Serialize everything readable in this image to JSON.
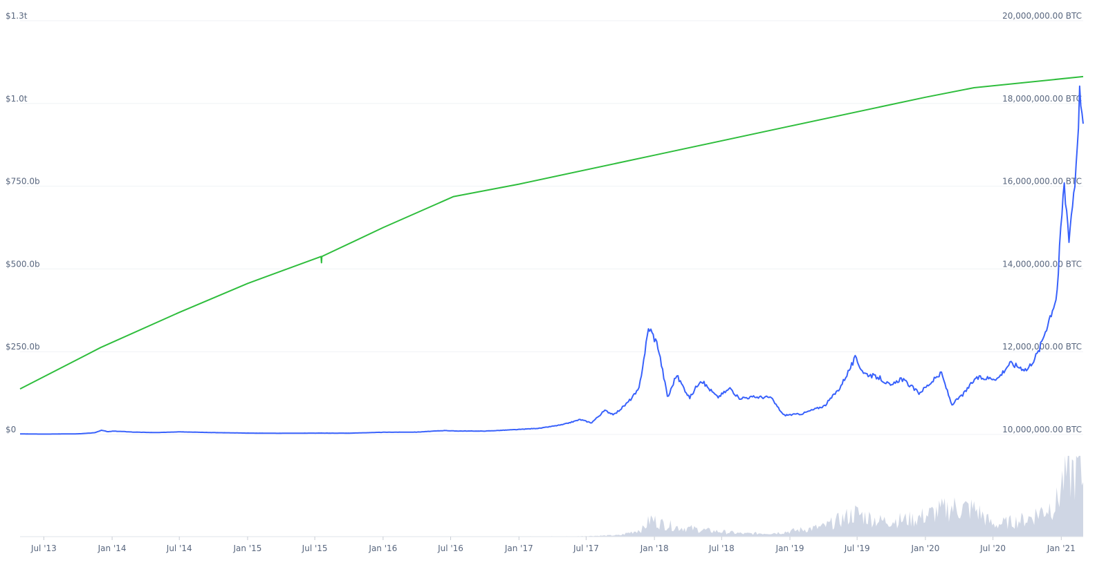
{
  "chart_data": {
    "type": "line",
    "title": "",
    "x_start": "2013-04-28",
    "x_end": "2021-03-01",
    "x_ticks": [
      "Jul '13",
      "Jan '14",
      "Jul '14",
      "Jan '15",
      "Jul '15",
      "Jan '16",
      "Jul '16",
      "Jan '17",
      "Jul '17",
      "Jan '18",
      "Jul '18",
      "Jan '19",
      "Jul '19",
      "Jan '20",
      "Jul '20",
      "Jan '21"
    ],
    "x_tick_dates": [
      "2013-07-01",
      "2014-01-01",
      "2014-07-01",
      "2015-01-01",
      "2015-07-01",
      "2016-01-01",
      "2016-07-01",
      "2017-01-01",
      "2017-07-01",
      "2018-01-01",
      "2018-07-01",
      "2019-01-01",
      "2019-07-01",
      "2020-01-01",
      "2020-07-01",
      "2021-01-01"
    ],
    "y_left": {
      "ticks": [
        "$0",
        "$250.0b",
        "$500.0b",
        "$750.0b",
        "$1.0t",
        "$1.3t"
      ],
      "tick_values": [
        0,
        250,
        500,
        750,
        1000,
        1250
      ],
      "unit": "billions USD",
      "ylim": [
        0,
        1250
      ]
    },
    "y_right": {
      "ticks": [
        "10,000,000.00 BTC",
        "12,000,000.00 BTC",
        "14,000,000.00 BTC",
        "16,000,000.00 BTC",
        "18,000,000.00 BTC",
        "20,000,000.00 BTC"
      ],
      "tick_values": [
        10000000,
        12000000,
        14000000,
        16000000,
        18000000,
        20000000
      ],
      "ylim": [
        10000000,
        20000000
      ]
    },
    "grid": true,
    "colors": {
      "market_cap": "#3861fb",
      "supply": "#2ebd3c",
      "volume": "#cfd6e4"
    },
    "series": [
      {
        "name": "",
        "axis": "left",
        "points": [
          [
            "2013-04-28",
            1.5
          ],
          [
            "2013-07-01",
            1.0
          ],
          [
            "2013-10-01",
            1.8
          ],
          [
            "2013-11-15",
            5
          ],
          [
            "2013-12-04",
            13
          ],
          [
            "2013-12-20",
            8
          ],
          [
            "2014-01-05",
            10
          ],
          [
            "2014-02-01",
            8.5
          ],
          [
            "2014-03-01",
            7
          ],
          [
            "2014-05-01",
            5.5
          ],
          [
            "2014-07-01",
            8
          ],
          [
            "2014-10-01",
            5.5
          ],
          [
            "2015-01-01",
            4
          ],
          [
            "2015-04-01",
            3.5
          ],
          [
            "2015-07-01",
            4
          ],
          [
            "2015-10-01",
            3.8
          ],
          [
            "2016-01-01",
            6.5
          ],
          [
            "2016-04-01",
            7
          ],
          [
            "2016-06-18",
            12
          ],
          [
            "2016-07-01",
            10.5
          ],
          [
            "2016-10-01",
            10
          ],
          [
            "2017-01-01",
            15
          ],
          [
            "2017-03-01",
            19
          ],
          [
            "2017-05-01",
            30
          ],
          [
            "2017-06-15",
            45
          ],
          [
            "2017-07-15",
            35
          ],
          [
            "2017-08-20",
            72
          ],
          [
            "2017-09-15",
            60
          ],
          [
            "2017-10-20",
            95
          ],
          [
            "2017-11-20",
            135
          ],
          [
            "2017-12-17",
            325
          ],
          [
            "2018-01-10",
            270
          ],
          [
            "2018-02-06",
            110
          ],
          [
            "2018-03-01",
            180
          ],
          [
            "2018-04-06",
            110
          ],
          [
            "2018-05-05",
            165
          ],
          [
            "2018-06-20",
            112
          ],
          [
            "2018-07-25",
            140
          ],
          [
            "2018-08-15",
            110
          ],
          [
            "2018-10-01",
            113
          ],
          [
            "2018-11-10",
            112
          ],
          [
            "2018-12-15",
            58
          ],
          [
            "2019-02-01",
            62
          ],
          [
            "2019-04-05",
            87
          ],
          [
            "2019-05-15",
            140
          ],
          [
            "2019-06-26",
            230
          ],
          [
            "2019-07-20",
            185
          ],
          [
            "2019-09-01",
            170
          ],
          [
            "2019-10-01",
            145
          ],
          [
            "2019-10-27",
            170
          ],
          [
            "2019-12-15",
            125
          ],
          [
            "2020-02-13",
            185
          ],
          [
            "2020-03-12",
            90
          ],
          [
            "2020-04-15",
            125
          ],
          [
            "2020-05-15",
            170
          ],
          [
            "2020-07-15",
            170
          ],
          [
            "2020-08-15",
            215
          ],
          [
            "2020-10-01",
            195
          ],
          [
            "2020-11-01",
            250
          ],
          [
            "2020-12-01",
            355
          ],
          [
            "2020-12-20",
            420
          ],
          [
            "2021-01-08",
            760
          ],
          [
            "2021-01-22",
            600
          ],
          [
            "2021-02-08",
            780
          ],
          [
            "2021-02-21",
            1060
          ],
          [
            "2021-03-01",
            910
          ]
        ]
      },
      {
        "name": "",
        "axis": "right",
        "points": [
          [
            "2013-04-28",
            11100000
          ],
          [
            "2013-12-01",
            12100000
          ],
          [
            "2014-07-01",
            12950000
          ],
          [
            "2015-01-01",
            13650000
          ],
          [
            "2015-07-18",
            14300000
          ],
          [
            "2015-07-19",
            14150000
          ],
          [
            "2015-07-20",
            14300000
          ],
          [
            "2016-01-01",
            15000000
          ],
          [
            "2016-07-09",
            15750000
          ],
          [
            "2017-01-01",
            16050000
          ],
          [
            "2018-01-01",
            16750000
          ],
          [
            "2019-01-01",
            17450000
          ],
          [
            "2020-01-01",
            18150000
          ],
          [
            "2020-05-11",
            18380000
          ],
          [
            "2021-03-01",
            18650000
          ]
        ]
      },
      {
        "name": "",
        "type": "area",
        "role": "volume",
        "points": [
          [
            "2013-04-28",
            0
          ],
          [
            "2017-06-01",
            0.3
          ],
          [
            "2017-10-01",
            1.5
          ],
          [
            "2017-12-01",
            8
          ],
          [
            "2017-12-22",
            18
          ],
          [
            "2018-01-15",
            14
          ],
          [
            "2018-03-01",
            10
          ],
          [
            "2018-06-01",
            6
          ],
          [
            "2018-09-01",
            3
          ],
          [
            "2018-12-01",
            4
          ],
          [
            "2019-04-01",
            10
          ],
          [
            "2019-06-26",
            24
          ],
          [
            "2019-09-01",
            16
          ],
          [
            "2019-12-01",
            18
          ],
          [
            "2020-03-12",
            30
          ],
          [
            "2020-05-15",
            28
          ],
          [
            "2020-07-01",
            12
          ],
          [
            "2020-10-01",
            18
          ],
          [
            "2020-12-20",
            35
          ],
          [
            "2021-01-08",
            62
          ],
          [
            "2021-02-21",
            70
          ],
          [
            "2021-03-01",
            55
          ]
        ]
      }
    ]
  }
}
